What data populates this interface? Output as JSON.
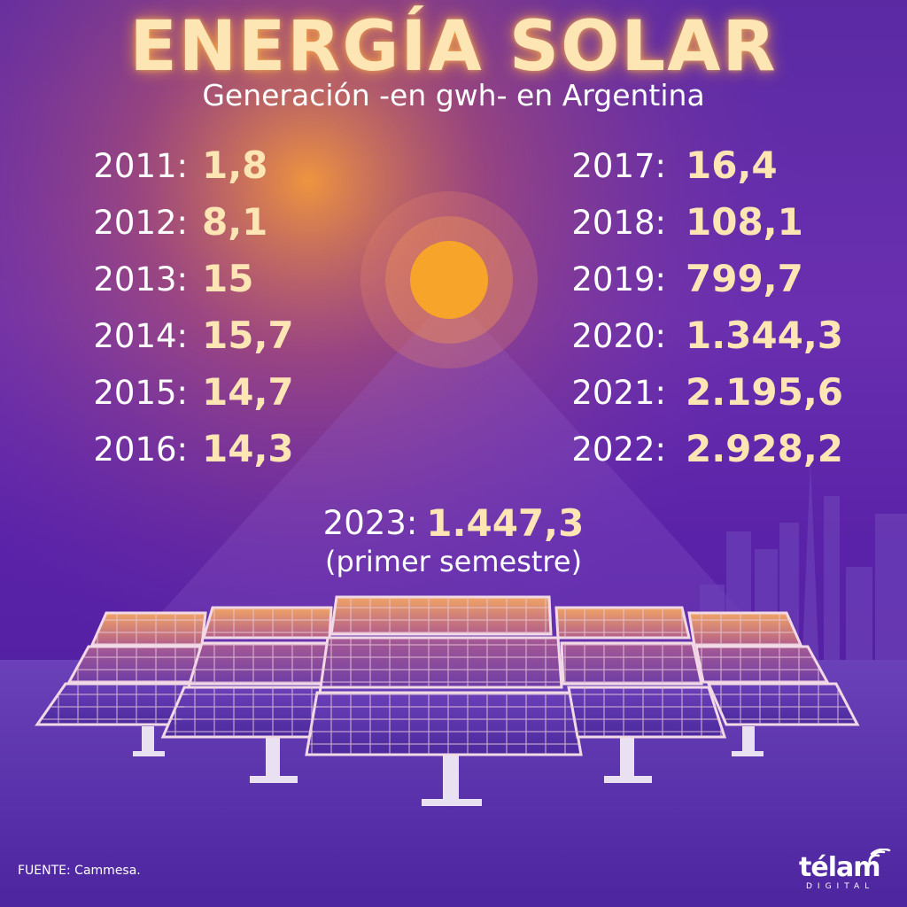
{
  "header": {
    "title": "ENERGÍA SOLAR",
    "subtitle": "Generación -en gwh- en Argentina"
  },
  "left_column": [
    {
      "year": "2011:",
      "value": "1,8"
    },
    {
      "year": "2012:",
      "value": "8,1"
    },
    {
      "year": "2013:",
      "value": "15"
    },
    {
      "year": "2014:",
      "value": "15,7"
    },
    {
      "year": "2015:",
      "value": "14,7"
    },
    {
      "year": "2016:",
      "value": "14,3"
    }
  ],
  "right_column": [
    {
      "year": "2017:",
      "value": "16,4"
    },
    {
      "year": "2018:",
      "value": "108,1"
    },
    {
      "year": "2019:",
      "value": "799,7"
    },
    {
      "year": "2020:",
      "value": "1.344,3"
    },
    {
      "year": "2021:",
      "value": "2.195,6"
    },
    {
      "year": "2022:",
      "value": "2.928,2"
    }
  ],
  "last_entry": {
    "year": "2023:",
    "value": "1.447,3",
    "note": "(primer semestre)"
  },
  "footer": {
    "source": "FUENTE: Cammesa.",
    "logo_word": "télam",
    "logo_sub": "DIGITAL"
  },
  "colors": {
    "background": "#5b2aa3",
    "title": "#fde6b4",
    "value": "#fde6b4",
    "sun": "#f7a42a",
    "text": "#ffffff"
  },
  "icons": [
    "sun-icon",
    "solar-panel-array",
    "city-skyline",
    "telam-logo-waves-icon"
  ]
}
